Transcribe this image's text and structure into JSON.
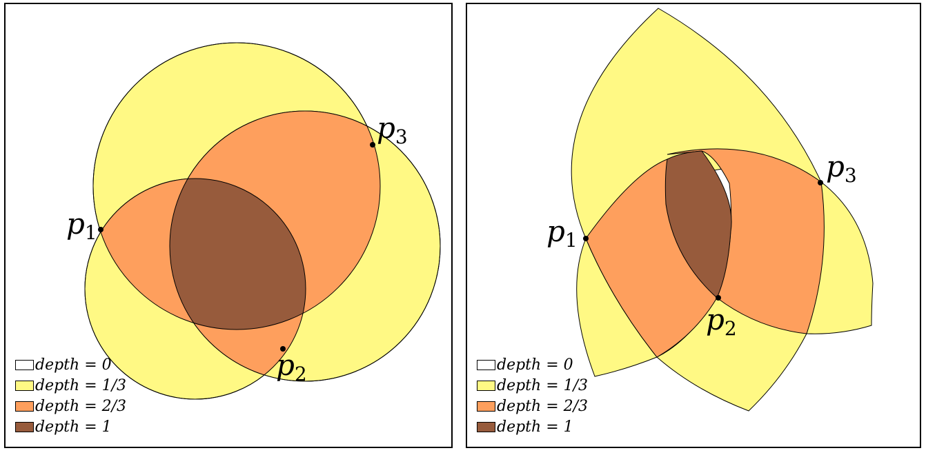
{
  "colors": {
    "depth_0": "#ffffff",
    "depth_1_3": "#fff984",
    "depth_2_3": "#fe9f5d",
    "depth_1": "#975b3c",
    "stroke": "#000000"
  },
  "panels": [
    {
      "points": [
        {
          "name": "p",
          "sub": "1"
        },
        {
          "name": "p",
          "sub": "2"
        },
        {
          "name": "p",
          "sub": "3"
        }
      ],
      "legend": [
        "depth = 0",
        "depth = 1/3",
        "depth = 2/3",
        "depth = 1"
      ]
    },
    {
      "points": [
        {
          "name": "p",
          "sub": "1"
        },
        {
          "name": "p",
          "sub": "2"
        },
        {
          "name": "p",
          "sub": "3"
        }
      ],
      "legend": [
        "depth = 0",
        "depth = 1/3",
        "depth = 2/3",
        "depth = 1"
      ]
    }
  ]
}
